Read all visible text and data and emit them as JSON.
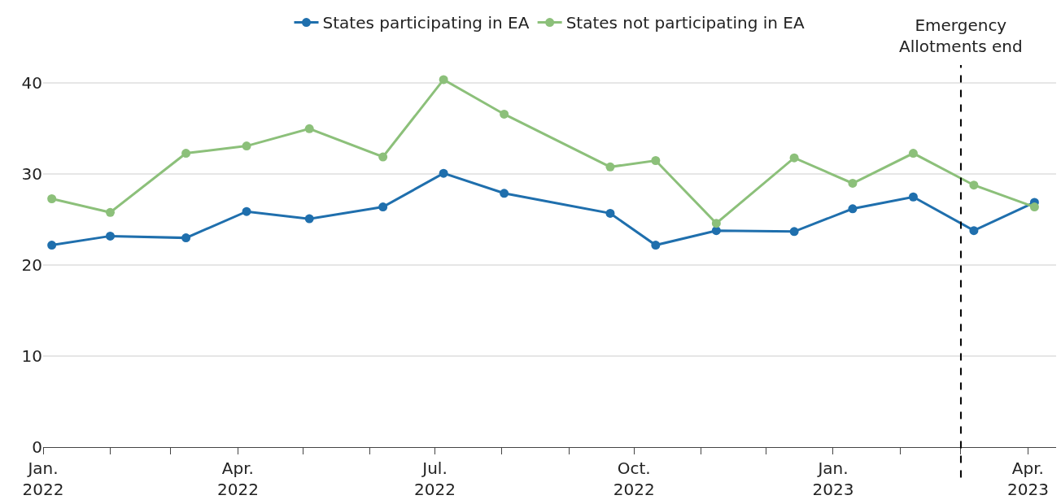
{
  "chart_data": {
    "type": "line",
    "x": [
      "2022-01-05",
      "2022-02-01",
      "2022-03-08",
      "2022-04-05",
      "2022-05-04",
      "2022-06-07",
      "2022-07-05",
      "2022-08-02",
      "2022-09-20",
      "2022-10-11",
      "2022-11-08",
      "2022-12-14",
      "2023-01-10",
      "2023-02-07",
      "2023-03-07",
      "2023-04-04"
    ],
    "series": [
      {
        "name": "States participating in EA",
        "color": "#1f6fad",
        "values": [
          22.2,
          23.2,
          23.0,
          25.9,
          25.1,
          26.4,
          30.1,
          27.9,
          25.7,
          22.2,
          23.8,
          23.7,
          26.2,
          27.5,
          23.8,
          26.9
        ]
      },
      {
        "name": "States not participating in EA",
        "color": "#8cc07a",
        "values": [
          27.3,
          25.8,
          32.3,
          33.1,
          35.0,
          31.9,
          40.4,
          36.6,
          30.8,
          31.5,
          24.6,
          31.8,
          29.0,
          32.3,
          28.8,
          26.4
        ]
      }
    ],
    "xlim": [
      "2022-01-01",
      "2023-04-14"
    ],
    "xticks": [
      {
        "value": "2022-01-01",
        "label": "Jan.\n2022"
      },
      {
        "value": "2022-02-01",
        "label": null
      },
      {
        "value": "2022-03-01",
        "label": null
      },
      {
        "value": "2022-04-01",
        "label": "Apr.\n2022"
      },
      {
        "value": "2022-05-01",
        "label": null
      },
      {
        "value": "2022-06-01",
        "label": null
      },
      {
        "value": "2022-07-01",
        "label": "Jul.\n2022"
      },
      {
        "value": "2022-08-01",
        "label": null
      },
      {
        "value": "2022-09-01",
        "label": null
      },
      {
        "value": "2022-10-01",
        "label": "Oct.\n2022"
      },
      {
        "value": "2022-11-01",
        "label": null
      },
      {
        "value": "2022-12-01",
        "label": null
      },
      {
        "value": "2023-01-01",
        "label": "Jan.\n2023"
      },
      {
        "value": "2023-02-01",
        "label": null
      },
      {
        "value": "2023-03-01",
        "label": null
      },
      {
        "value": "2023-04-01",
        "label": "Apr.\n2023"
      }
    ],
    "ylim": [
      0,
      42
    ],
    "yticks": [
      0,
      10,
      20,
      30,
      40
    ],
    "grid": "y",
    "legend": "top",
    "marker": "circle",
    "line_style": "solid",
    "ref_lines": [
      {
        "axis": "x",
        "value": "2023-03-01",
        "label": "Emergency\nAllotments end",
        "color": "#000000",
        "line_style": "dashed"
      }
    ]
  }
}
